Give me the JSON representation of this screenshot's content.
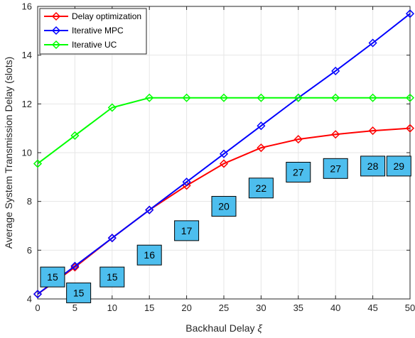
{
  "chart_data": {
    "type": "line",
    "title": "",
    "xlabel": "Backhaul Delay",
    "xlabel_symbol": "ξ",
    "ylabel": "Average System Transmission Delay (slots)",
    "x": [
      0,
      5,
      10,
      15,
      20,
      25,
      30,
      35,
      40,
      45,
      50
    ],
    "xlim": [
      0,
      50
    ],
    "ylim": [
      4,
      16
    ],
    "xticks": [
      "0",
      "5",
      "10",
      "15",
      "20",
      "25",
      "30",
      "35",
      "40",
      "45",
      "50"
    ],
    "yticks": [
      "4",
      "6",
      "8",
      "10",
      "12",
      "14",
      "16"
    ],
    "grid": true,
    "legend_position": "top-left",
    "series": [
      {
        "name": "Delay optimization",
        "color": "#ff0000",
        "marker": "diamond",
        "values": [
          4.2,
          5.3,
          6.5,
          7.65,
          8.65,
          9.55,
          10.2,
          10.55,
          10.75,
          10.9,
          11.0
        ]
      },
      {
        "name": "Iterative MPC",
        "color": "#0000ff",
        "marker": "diamond",
        "values": [
          4.2,
          5.35,
          6.5,
          7.65,
          8.8,
          9.95,
          11.1,
          12.25,
          13.35,
          14.5,
          15.7
        ]
      },
      {
        "name": "Iterative UC",
        "color": "#00ff00",
        "marker": "diamond",
        "values": [
          9.55,
          10.7,
          11.85,
          12.25,
          12.25,
          12.25,
          12.25,
          12.25,
          12.25,
          12.25,
          12.25
        ]
      }
    ],
    "annotations": [
      {
        "text": "15",
        "x": 2,
        "y": 4.9
      },
      {
        "text": "15",
        "x": 5.5,
        "y": 4.25
      },
      {
        "text": "15",
        "x": 10,
        "y": 4.9
      },
      {
        "text": "16",
        "x": 15,
        "y": 5.8
      },
      {
        "text": "17",
        "x": 20,
        "y": 6.8
      },
      {
        "text": "20",
        "x": 25,
        "y": 7.8
      },
      {
        "text": "22",
        "x": 30,
        "y": 8.55
      },
      {
        "text": "27",
        "x": 35,
        "y": 9.2
      },
      {
        "text": "27",
        "x": 40,
        "y": 9.35
      },
      {
        "text": "28",
        "x": 45,
        "y": 9.45
      },
      {
        "text": "29",
        "x": 48.5,
        "y": 9.45
      }
    ],
    "annotation_color": "#4dbeee"
  }
}
